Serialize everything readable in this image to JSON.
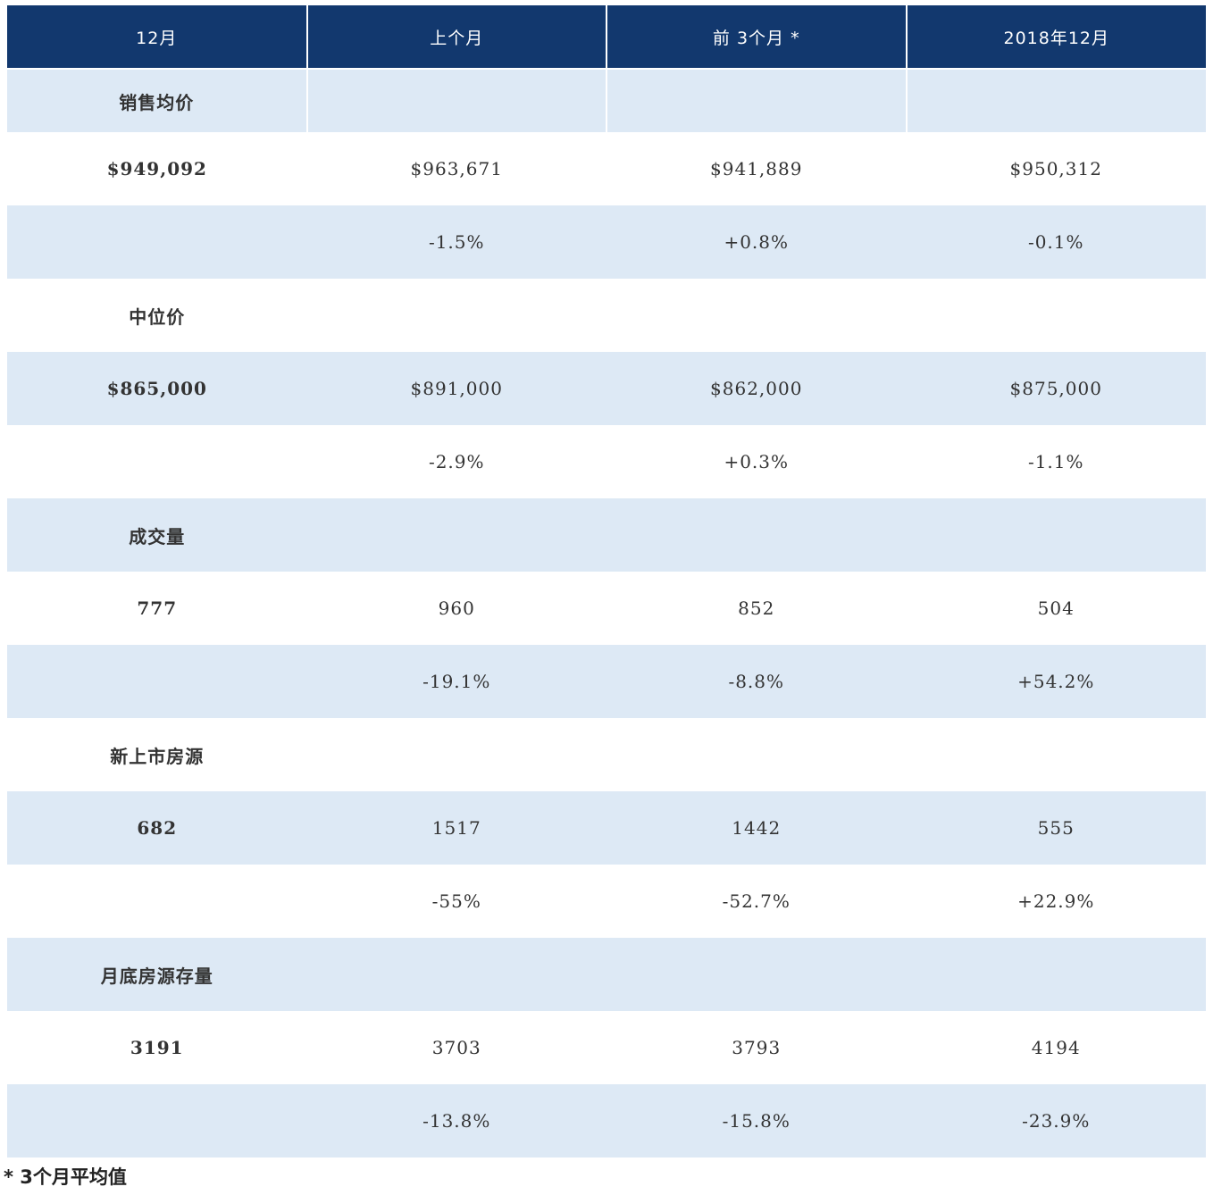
{
  "table": {
    "header": [
      "12月",
      "上个月",
      "前 3个月 *",
      "2018年12月"
    ],
    "rows": [
      [
        "销售均价",
        null,
        null,
        null
      ],
      [
        "$949,092",
        "$963,671",
        "$941,889",
        "$950,312"
      ],
      [
        null,
        "-1.5%",
        "+0.8%",
        "-0.1%"
      ],
      [
        "中位价",
        null,
        null,
        null
      ],
      [
        "$865,000",
        "$891,000",
        "$862,000",
        "$875,000"
      ],
      [
        null,
        "-2.9%",
        "+0.3%",
        "-1.1%"
      ],
      [
        "成交量",
        null,
        null,
        null
      ],
      [
        "777",
        "960",
        "852",
        "504"
      ],
      [
        null,
        "-19.1%",
        "-8.8%",
        "+54.2%"
      ],
      [
        "新上市房源",
        null,
        null,
        null
      ],
      [
        "682",
        "1517",
        "1442",
        "555"
      ],
      [
        null,
        "-55%",
        "-52.7%",
        "+22.9%"
      ],
      [
        "月底房源存量",
        null,
        null,
        null
      ],
      [
        "3191",
        "3703",
        "3793",
        "4194"
      ],
      [
        null,
        "-13.8%",
        "-15.8%",
        "-23.9%"
      ]
    ]
  },
  "footnote": "* 3个月平均值"
}
